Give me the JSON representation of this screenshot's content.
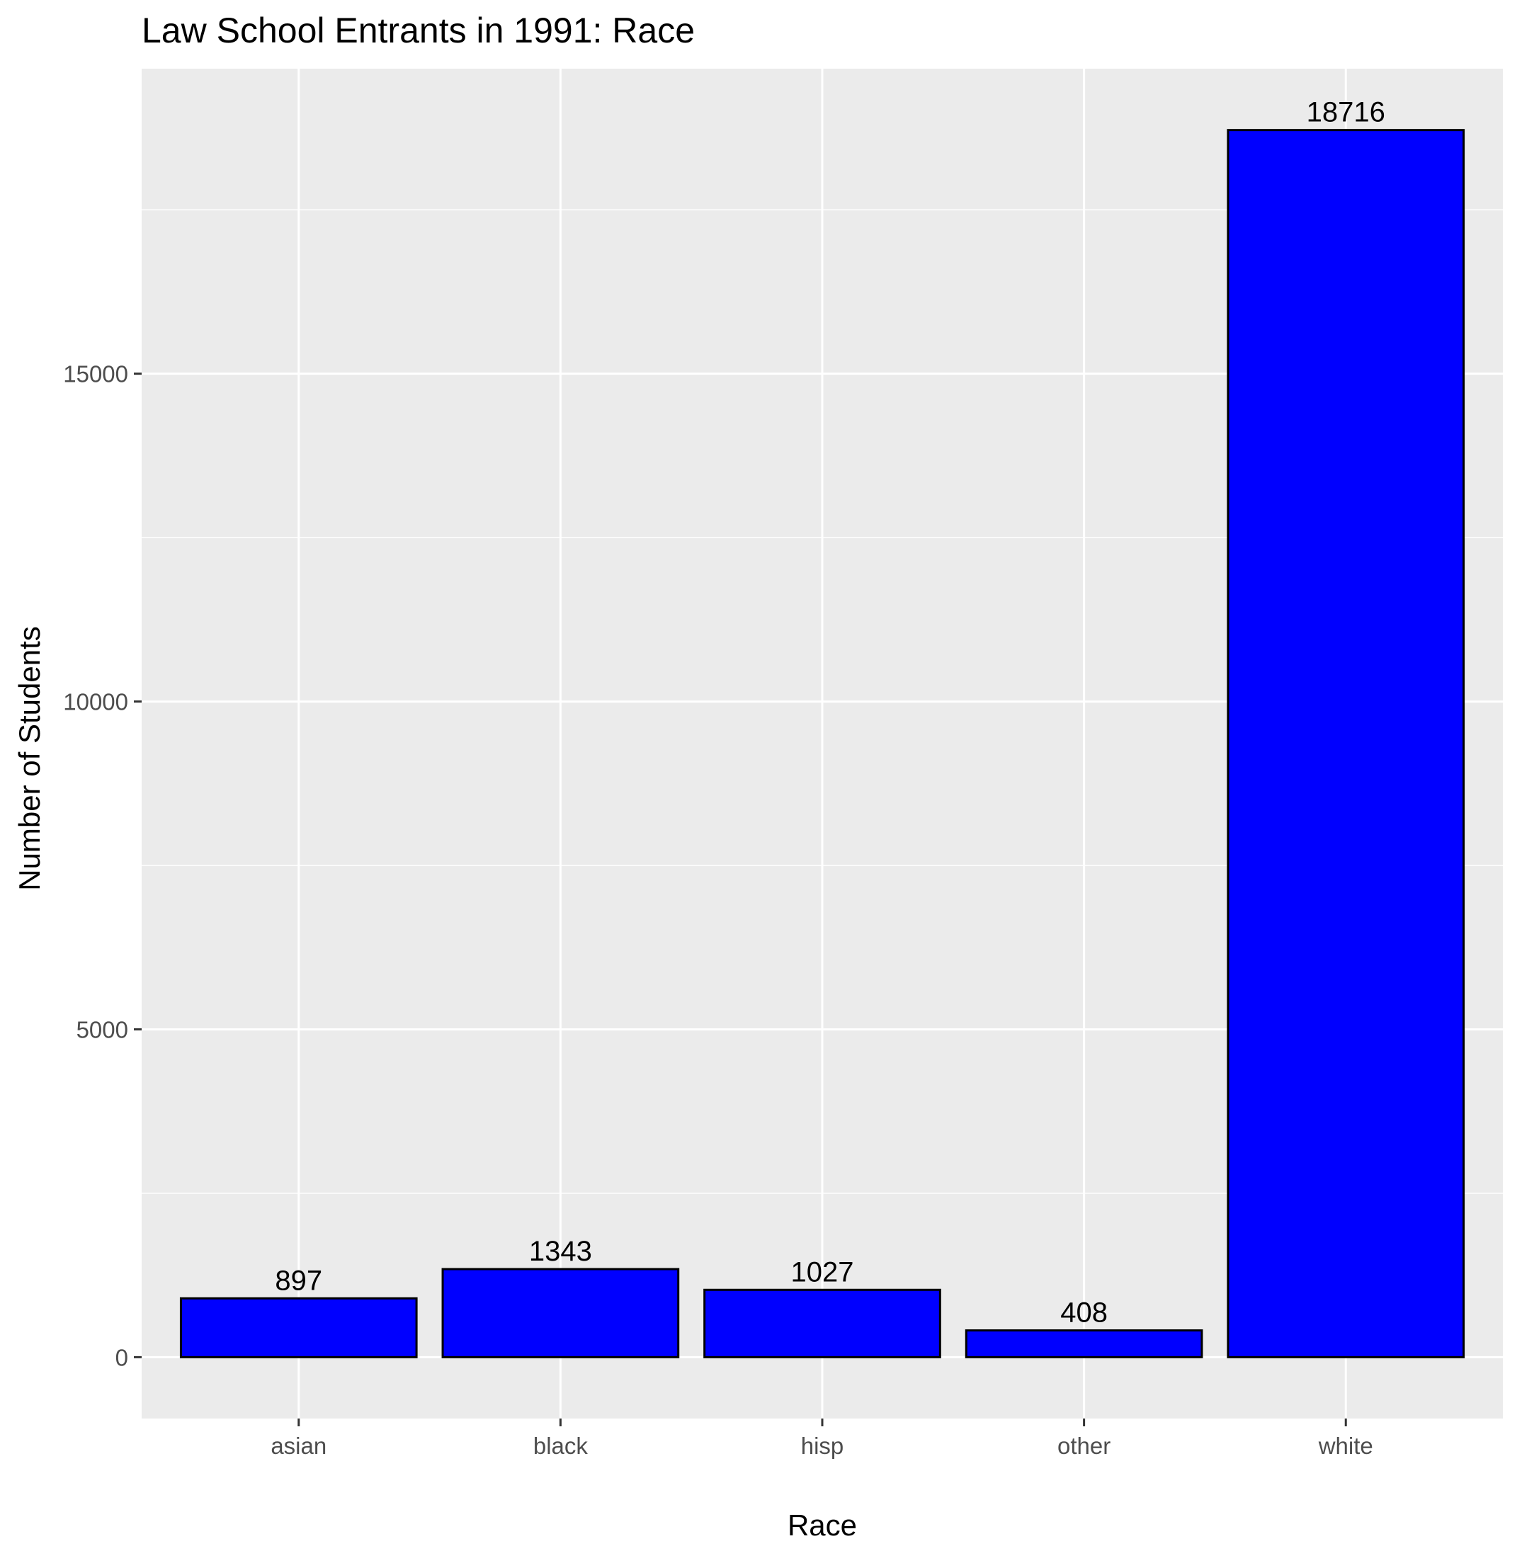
{
  "chart_data": {
    "type": "bar",
    "title": "Law School Entrants in 1991: Race",
    "xlabel": "Race",
    "ylabel": "Number of Students",
    "categories": [
      "asian",
      "black",
      "hisp",
      "other",
      "white"
    ],
    "values": [
      897,
      1343,
      1027,
      408,
      18716
    ],
    "data_labels": [
      "897",
      "1343",
      "1027",
      "408",
      "18716"
    ],
    "yticks": [
      0,
      5000,
      10000,
      15000
    ],
    "ytick_labels": [
      "0",
      "5000",
      "10000",
      "15000"
    ],
    "ylim": [
      -935.8,
      19651.8
    ],
    "grid": true,
    "legend": "none",
    "colors": {
      "bar_fill": "#0000FF",
      "bar_outline": "#000000",
      "panel_background": "#EBEBEB",
      "grid": "#FFFFFF"
    }
  }
}
